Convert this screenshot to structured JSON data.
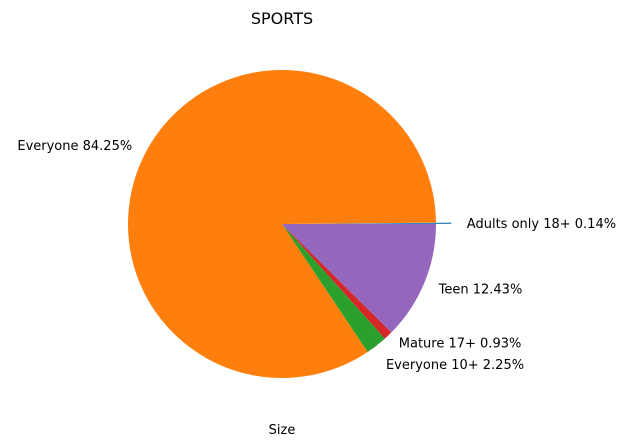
{
  "chart_data": {
    "type": "pie",
    "title": "SPORTS",
    "xlabel": "Size",
    "slices": [
      {
        "label": "Adults only 18+",
        "pct_label": "0.14%",
        "value": 0.14,
        "color": "#1f77b4",
        "exploded": true
      },
      {
        "label": "Everyone",
        "pct_label": "84.25%",
        "value": 84.25,
        "color": "#ff7f0e",
        "exploded": false
      },
      {
        "label": "Everyone 10+",
        "pct_label": "2.25%",
        "value": 2.25,
        "color": "#2ca02c",
        "exploded": false
      },
      {
        "label": "Mature 17+",
        "pct_label": "0.93%",
        "value": 0.93,
        "color": "#d62728",
        "exploded": false
      },
      {
        "label": "Teen",
        "pct_label": "12.43%",
        "value": 12.43,
        "color": "#9467bd",
        "exploded": false
      }
    ],
    "start_angle_deg": 0,
    "direction": "counterclockwise"
  }
}
